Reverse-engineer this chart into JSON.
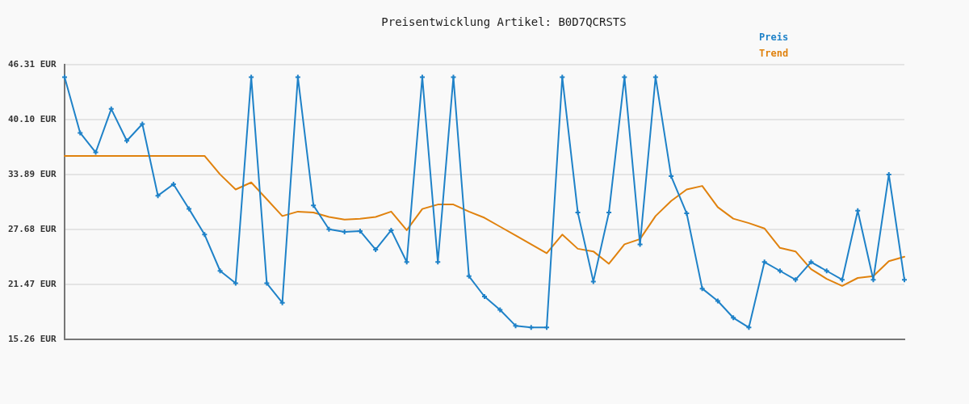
{
  "chart_data": {
    "type": "line",
    "title": "Preisentwicklung Artikel: B0D7QCRSTS",
    "categories": [
      null,
      null,
      null,
      null,
      null,
      null,
      null,
      null,
      null,
      null,
      null,
      null,
      null,
      null,
      null,
      null,
      null,
      null,
      null,
      null,
      null,
      null,
      null,
      null,
      null,
      null,
      null,
      null,
      null,
      null,
      null,
      null,
      null,
      null,
      null,
      null,
      null,
      null,
      null,
      null,
      null,
      null,
      null,
      null,
      null,
      null,
      null,
      null,
      null,
      null,
      null,
      null,
      null,
      null,
      null
    ],
    "series": [
      {
        "name": "Preis",
        "color": "#1f82c8",
        "marker": "cross",
        "values": [
          44.9,
          38.6,
          36.4,
          41.3,
          37.7,
          39.6,
          31.5,
          32.8,
          30.0,
          27.1,
          23.0,
          21.6,
          44.9,
          21.6,
          19.4,
          44.9,
          30.4,
          27.7,
          27.4,
          27.5,
          25.4,
          27.6,
          24.0,
          44.9,
          24.0,
          44.9,
          22.4,
          20.1,
          18.6,
          16.8,
          16.6,
          16.6,
          44.9,
          29.6,
          21.8,
          29.6,
          44.9,
          26.0,
          44.9,
          33.7,
          29.5,
          21.0,
          19.6,
          17.7,
          16.6,
          24.0,
          23.0,
          22.0,
          24.0,
          23.0,
          22.0,
          29.8,
          22.0,
          33.9,
          22.0
        ]
      },
      {
        "name": "Trend",
        "color": "#e0820e",
        "marker": "none",
        "values": [
          36.0,
          36.0,
          36.0,
          36.0,
          36.0,
          36.0,
          36.0,
          36.0,
          36.0,
          36.0,
          33.9,
          32.2,
          33.0,
          31.1,
          29.2,
          29.7,
          29.6,
          29.1,
          28.8,
          28.9,
          29.1,
          29.7,
          27.6,
          30.0,
          30.5,
          30.5,
          29.7,
          29.0,
          28.0,
          27.0,
          26.0,
          25.0,
          27.1,
          25.5,
          25.2,
          23.8,
          26.0,
          26.6,
          29.2,
          30.9,
          32.2,
          32.6,
          30.2,
          28.9,
          28.4,
          27.8,
          25.6,
          25.2,
          23.2,
          22.1,
          21.3,
          22.2,
          22.4,
          24.1,
          24.6
        ]
      }
    ],
    "ylim": [
      15.26,
      46.31
    ],
    "yticks": [
      {
        "value": 15.26,
        "label": "15.26 EUR"
      },
      {
        "value": 21.47,
        "label": "21.47 EUR"
      },
      {
        "value": 27.68,
        "label": "27.68 EUR"
      },
      {
        "value": 33.89,
        "label": "33.89 EUR"
      },
      {
        "value": 40.1,
        "label": "40.10 EUR"
      },
      {
        "value": 46.31,
        "label": "46.31 EUR"
      }
    ],
    "grid": "y",
    "legend": "top right",
    "tick_labels": "y",
    "line_style": "solid"
  }
}
